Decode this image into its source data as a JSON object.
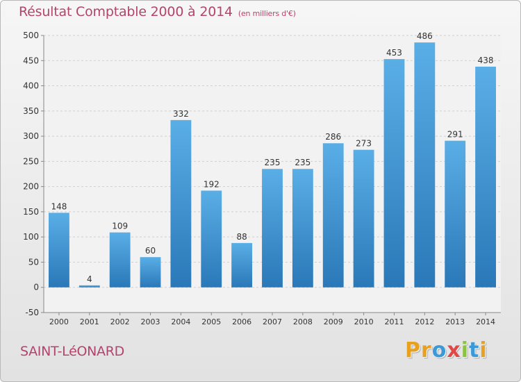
{
  "header": {
    "title": "Résultat Comptable 2000 à 2014",
    "subtitle": "(en milliers d'€)"
  },
  "footer": {
    "town": "SAINT-LéONARD",
    "logo": {
      "letters": [
        "P",
        "r",
        "o",
        "x",
        "i",
        "t",
        "i"
      ],
      "colors": [
        "#e8a020",
        "#e8a020",
        "#3a9ad9",
        "#e04848",
        "#8ac43f",
        "#3a9ad9",
        "#e8a020"
      ]
    }
  },
  "chart_data": {
    "type": "bar",
    "categories": [
      "2000",
      "2001",
      "2002",
      "2003",
      "2004",
      "2005",
      "2006",
      "2007",
      "2008",
      "2009",
      "2010",
      "2011",
      "2012",
      "2013",
      "2014"
    ],
    "values": [
      148,
      4,
      109,
      60,
      332,
      192,
      88,
      235,
      235,
      286,
      273,
      453,
      486,
      291,
      438
    ],
    "title": "Résultat Comptable 2000 à 2014",
    "subtitle": "(en milliers d'€)",
    "xlabel": "",
    "ylabel": "",
    "ylim": [
      -50,
      500
    ],
    "yticks": [
      -50,
      0,
      50,
      100,
      150,
      200,
      250,
      300,
      350,
      400,
      450,
      500
    ],
    "grid": true,
    "colors": {
      "bar_top": "#5aaee6",
      "bar_bottom": "#2a78b8",
      "grid": "#d0d0d0",
      "axis": "#888888",
      "text": "#333333"
    }
  }
}
